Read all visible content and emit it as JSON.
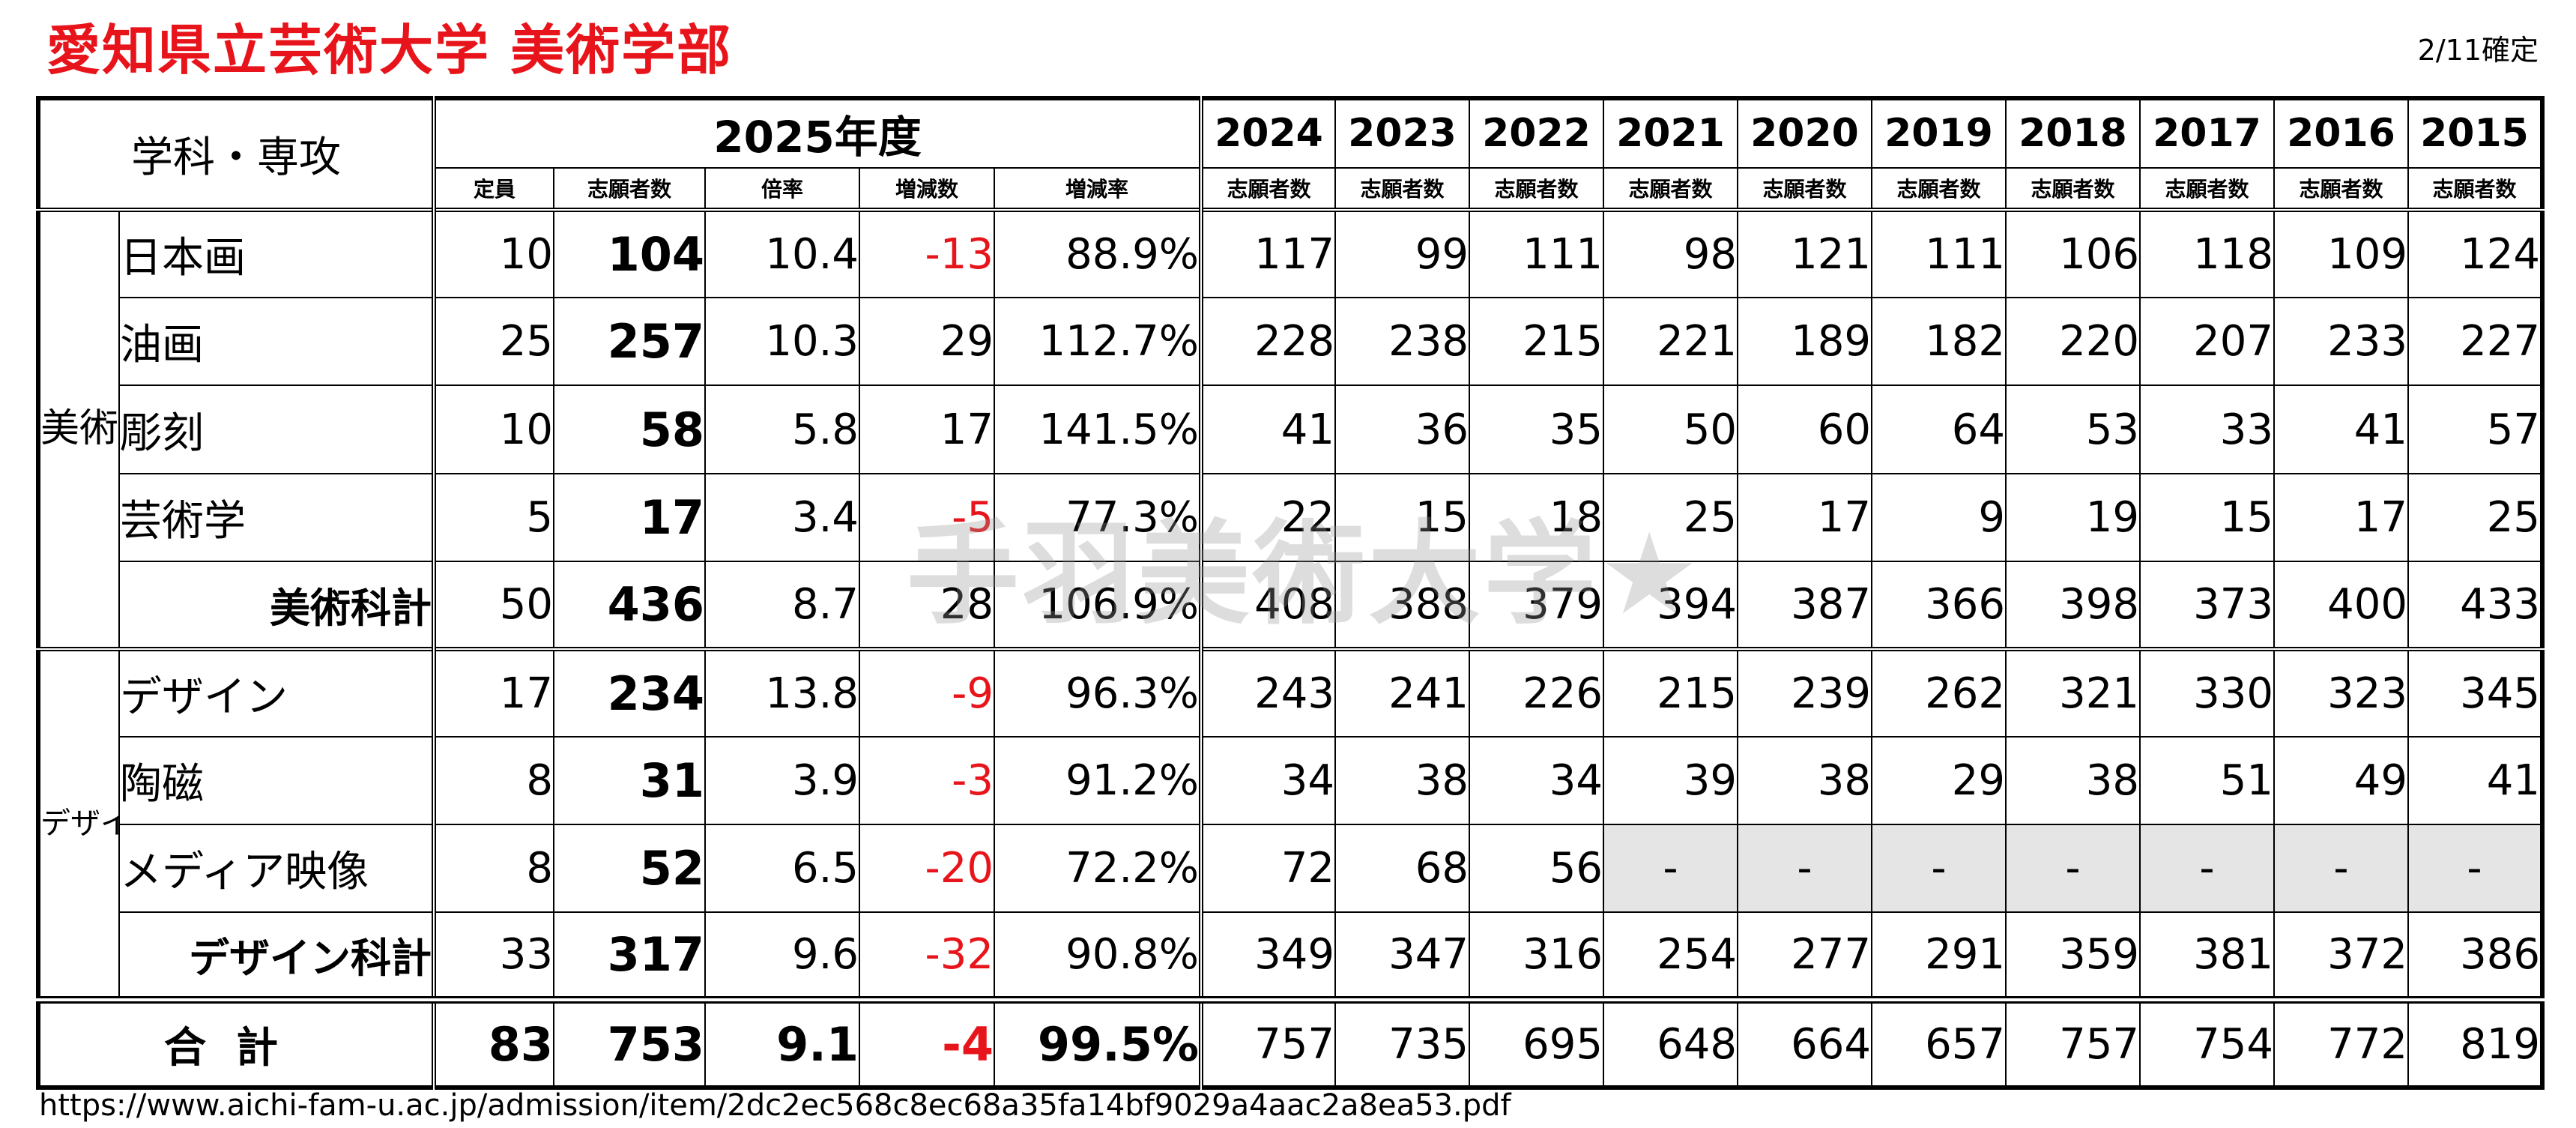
{
  "header": {
    "title": "愛知県立芸術大学 美術学部",
    "confirmed": "2/11確定"
  },
  "watermark": "手羽美術大学★",
  "footer_url": "https://www.aichi-fam-u.ac.jp/admission/item/2dc2ec568c8ec68a35fa14bf9029a4aac2a8ea53.pdf",
  "table": {
    "dept_header": "学科・専攻",
    "current_year_label": "2025年度",
    "current_cols": [
      "定員",
      "志願者数",
      "倍率",
      "増減数",
      "増減率"
    ],
    "past_years": [
      "2024",
      "2023",
      "2022",
      "2021",
      "2020",
      "2019",
      "2018",
      "2017",
      "2016",
      "2015"
    ],
    "past_col_label": "志願者数",
    "groups": [
      {
        "label": "美術",
        "rows": [
          {
            "name": "日本画",
            "capacity": "10",
            "applicants": "104",
            "ratio": "10.4",
            "change": "-13",
            "rate": "88.9%",
            "past": [
              "117",
              "99",
              "111",
              "98",
              "121",
              "111",
              "106",
              "118",
              "109",
              "124"
            ]
          },
          {
            "name": "油画",
            "capacity": "25",
            "applicants": "257",
            "ratio": "10.3",
            "change": "29",
            "rate": "112.7%",
            "past": [
              "228",
              "238",
              "215",
              "221",
              "189",
              "182",
              "220",
              "207",
              "233",
              "227"
            ]
          },
          {
            "name": "彫刻",
            "capacity": "10",
            "applicants": "58",
            "ratio": "5.8",
            "change": "17",
            "rate": "141.5%",
            "past": [
              "41",
              "36",
              "35",
              "50",
              "60",
              "64",
              "53",
              "33",
              "41",
              "57"
            ]
          },
          {
            "name": "芸術学",
            "capacity": "5",
            "applicants": "17",
            "ratio": "3.4",
            "change": "-5",
            "rate": "77.3%",
            "past": [
              "22",
              "15",
              "18",
              "25",
              "17",
              "9",
              "19",
              "15",
              "17",
              "25"
            ]
          }
        ],
        "subtotal": {
          "name": "美術科計",
          "capacity": "50",
          "applicants": "436",
          "ratio": "8.7",
          "change": "28",
          "rate": "106.9%",
          "past": [
            "408",
            "388",
            "379",
            "394",
            "387",
            "366",
            "398",
            "373",
            "400",
            "433"
          ]
        }
      },
      {
        "label": "デザイン",
        "rows": [
          {
            "name": "デザイン",
            "capacity": "17",
            "applicants": "234",
            "ratio": "13.8",
            "change": "-9",
            "rate": "96.3%",
            "past": [
              "243",
              "241",
              "226",
              "215",
              "239",
              "262",
              "321",
              "330",
              "323",
              "345"
            ]
          },
          {
            "name": "陶磁",
            "capacity": "8",
            "applicants": "31",
            "ratio": "3.9",
            "change": "-3",
            "rate": "91.2%",
            "past": [
              "34",
              "38",
              "34",
              "39",
              "38",
              "29",
              "38",
              "51",
              "49",
              "41"
            ]
          },
          {
            "name": "メディア映像",
            "capacity": "8",
            "applicants": "52",
            "ratio": "6.5",
            "change": "-20",
            "rate": "72.2%",
            "past": [
              "72",
              "68",
              "56",
              "-",
              "-",
              "-",
              "-",
              "-",
              "-",
              "-"
            ]
          }
        ],
        "subtotal": {
          "name": "デザイン科計",
          "capacity": "33",
          "applicants": "317",
          "ratio": "9.6",
          "change": "-32",
          "rate": "90.8%",
          "past": [
            "349",
            "347",
            "316",
            "254",
            "277",
            "291",
            "359",
            "381",
            "372",
            "386"
          ]
        }
      }
    ],
    "total": {
      "name": "合計",
      "capacity": "83",
      "applicants": "753",
      "ratio": "9.1",
      "change": "-4",
      "rate": "99.5%",
      "past": [
        "757",
        "735",
        "695",
        "648",
        "664",
        "657",
        "757",
        "754",
        "772",
        "819"
      ]
    }
  }
}
